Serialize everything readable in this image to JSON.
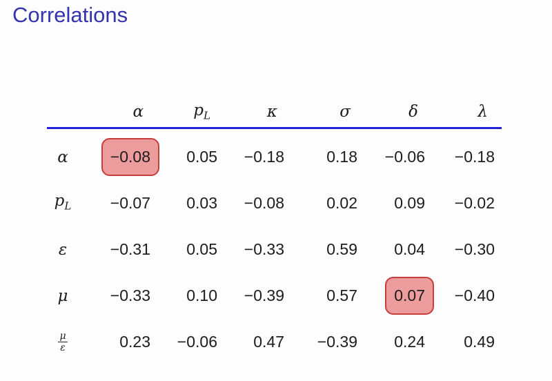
{
  "slide": {
    "title": "Correlations"
  },
  "colors": {
    "title": "#3433b0",
    "rule": "#2222dd",
    "highlight_fill": "#ec9c9c",
    "highlight_border": "#c53d3d",
    "text": "#1c1c1c",
    "background": "#fdfdfe"
  },
  "table": {
    "headers": {
      "alpha": "α",
      "p_base": "p",
      "p_sub": "L",
      "kappa": "κ",
      "sigma": "σ",
      "delta": "δ",
      "lambda": "λ"
    },
    "row_labels": {
      "alpha": "α",
      "p_base": "p",
      "p_sub": "L",
      "epsilon": "ε",
      "mu": "μ",
      "frac_num": "μ",
      "frac_den": "ε"
    },
    "rows": [
      {
        "label": "alpha",
        "values": [
          "−0.08",
          "0.05",
          "−0.18",
          "0.18",
          "−0.06",
          "−0.18"
        ],
        "highlighted_cols": [
          0
        ]
      },
      {
        "label": "pL",
        "values": [
          "−0.07",
          "0.03",
          "−0.08",
          "0.02",
          "0.09",
          "−0.02"
        ],
        "highlighted_cols": []
      },
      {
        "label": "epsilon",
        "values": [
          "−0.31",
          "0.05",
          "−0.33",
          "0.59",
          "0.04",
          "−0.30"
        ],
        "highlighted_cols": []
      },
      {
        "label": "mu",
        "values": [
          "−0.33",
          "0.10",
          "−0.39",
          "0.57",
          "0.07",
          "−0.40"
        ],
        "highlighted_cols": [
          4
        ]
      },
      {
        "label": "mu_over_epsilon",
        "values": [
          "0.23",
          "−0.06",
          "0.47",
          "−0.39",
          "0.24",
          "0.49"
        ],
        "highlighted_cols": []
      }
    ]
  }
}
